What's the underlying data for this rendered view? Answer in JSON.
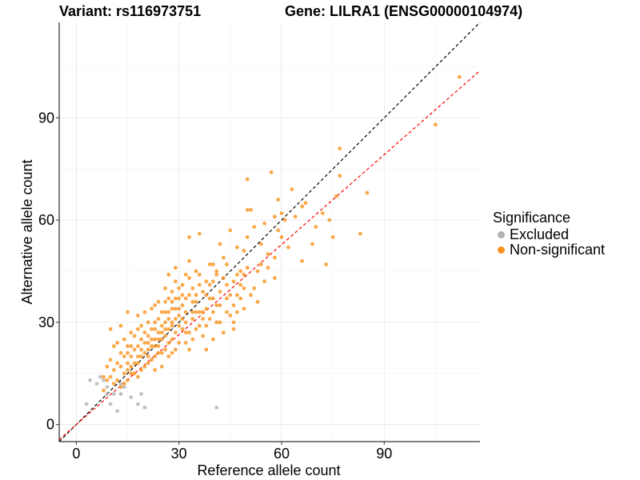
{
  "chart_data": {
    "type": "scatter",
    "title_left": "Variant: rs116973751",
    "title_right": "Gene: LILRA1 (ENSG00000104974)",
    "xlabel": "Reference allele count",
    "ylabel": "Alternative allele count",
    "xlim": [
      -5,
      118
    ],
    "ylim": [
      -5,
      118
    ],
    "xticks": [
      0,
      30,
      60,
      90
    ],
    "yticks": [
      0,
      30,
      60,
      90
    ],
    "grid": true,
    "legend": {
      "title": "Significance",
      "placement": "right",
      "entries": [
        {
          "label": "Excluded",
          "color": "#b3b3b3"
        },
        {
          "label": "Non-significant",
          "color": "#f7931e"
        }
      ]
    },
    "lines": [
      {
        "kind": "identity",
        "slope": 1.0,
        "intercept": 0,
        "color": "#000000",
        "dash": true
      },
      {
        "kind": "fit",
        "slope": 0.88,
        "intercept": 0,
        "color": "#ff0000",
        "dash": true
      }
    ],
    "series": [
      {
        "name": "Excluded",
        "color": "#b3b3b3",
        "points": [
          [
            3,
            6
          ],
          [
            4,
            13
          ],
          [
            6,
            12
          ],
          [
            7,
            14
          ],
          [
            8,
            13
          ],
          [
            9,
            11
          ],
          [
            9,
            9
          ],
          [
            10,
            6
          ],
          [
            11,
            9
          ],
          [
            13,
            9
          ],
          [
            13,
            12
          ],
          [
            16,
            8
          ],
          [
            18,
            6
          ],
          [
            19,
            9
          ],
          [
            20,
            5
          ],
          [
            41,
            5
          ],
          [
            12,
            4
          ],
          [
            14,
            11
          ]
        ]
      },
      {
        "name": "Non-significant",
        "color": "#f7931e",
        "points": [
          [
            112,
            102
          ],
          [
            105,
            88
          ],
          [
            77,
            81
          ],
          [
            72,
            62
          ],
          [
            73,
            47
          ],
          [
            76,
            67
          ],
          [
            77,
            73
          ],
          [
            85,
            68
          ],
          [
            83,
            56
          ],
          [
            74,
            60
          ],
          [
            75,
            55
          ],
          [
            70,
            58
          ],
          [
            66,
            64
          ],
          [
            67,
            65
          ],
          [
            66,
            48
          ],
          [
            69,
            53
          ],
          [
            63,
            69
          ],
          [
            64,
            61
          ],
          [
            60,
            62
          ],
          [
            61,
            60
          ],
          [
            62,
            52
          ],
          [
            60,
            55
          ],
          [
            58,
            61
          ],
          [
            58,
            43
          ],
          [
            57,
            74
          ],
          [
            59,
            66
          ],
          [
            59,
            57
          ],
          [
            58,
            49
          ],
          [
            55,
            59
          ],
          [
            56,
            50
          ],
          [
            56,
            46
          ],
          [
            54,
            53
          ],
          [
            53,
            36
          ],
          [
            53,
            45
          ],
          [
            52,
            58
          ],
          [
            51,
            63
          ],
          [
            50,
            63
          ],
          [
            50,
            72
          ],
          [
            50,
            55
          ],
          [
            49,
            51
          ],
          [
            49,
            44
          ],
          [
            49,
            40
          ],
          [
            48,
            37
          ],
          [
            47,
            44
          ],
          [
            47,
            52
          ],
          [
            46,
            30
          ],
          [
            46,
            35
          ],
          [
            45,
            38
          ],
          [
            45,
            57
          ],
          [
            44,
            47
          ],
          [
            44,
            41
          ],
          [
            43,
            49
          ],
          [
            42,
            53
          ],
          [
            42,
            39
          ],
          [
            41,
            44
          ],
          [
            41,
            35
          ],
          [
            40,
            42
          ],
          [
            40,
            33
          ],
          [
            40,
            25
          ],
          [
            39,
            37
          ],
          [
            39,
            47
          ],
          [
            38,
            42
          ],
          [
            38,
            34
          ],
          [
            38,
            29
          ],
          [
            37,
            39
          ],
          [
            37,
            31
          ],
          [
            36,
            56
          ],
          [
            36,
            44
          ],
          [
            36,
            41
          ],
          [
            35,
            38
          ],
          [
            35,
            33
          ],
          [
            35,
            28
          ],
          [
            34,
            40
          ],
          [
            34,
            36
          ],
          [
            34,
            31
          ],
          [
            33,
            55
          ],
          [
            33,
            48
          ],
          [
            33,
            43
          ],
          [
            33,
            27
          ],
          [
            32,
            44
          ],
          [
            32,
            37
          ],
          [
            32,
            33
          ],
          [
            32,
            30
          ],
          [
            31,
            41
          ],
          [
            31,
            38
          ],
          [
            31,
            35
          ],
          [
            30,
            40
          ],
          [
            30,
            34
          ],
          [
            30,
            29
          ],
          [
            30,
            24
          ],
          [
            29,
            46
          ],
          [
            29,
            42
          ],
          [
            29,
            37
          ],
          [
            29,
            31
          ],
          [
            29,
            27
          ],
          [
            28,
            39
          ],
          [
            28,
            34
          ],
          [
            28,
            29
          ],
          [
            28,
            25
          ],
          [
            28,
            21
          ],
          [
            27,
            44
          ],
          [
            27,
            37
          ],
          [
            27,
            33
          ],
          [
            27,
            28
          ],
          [
            27,
            24
          ],
          [
            26,
            40
          ],
          [
            26,
            36
          ],
          [
            26,
            30
          ],
          [
            26,
            26
          ],
          [
            26,
            22
          ],
          [
            25,
            33
          ],
          [
            25,
            29
          ],
          [
            25,
            21
          ],
          [
            25,
            17
          ],
          [
            24,
            36
          ],
          [
            24,
            31
          ],
          [
            24,
            27
          ],
          [
            24,
            23
          ],
          [
            23,
            35
          ],
          [
            23,
            30
          ],
          [
            23,
            25
          ],
          [
            23,
            20
          ],
          [
            23,
            16
          ],
          [
            22,
            34
          ],
          [
            22,
            28
          ],
          [
            22,
            23
          ],
          [
            21,
            30
          ],
          [
            21,
            26
          ],
          [
            21,
            22
          ],
          [
            21,
            18
          ],
          [
            20,
            33
          ],
          [
            20,
            27
          ],
          [
            20,
            21
          ],
          [
            19,
            25
          ],
          [
            19,
            20
          ],
          [
            19,
            16
          ],
          [
            18,
            32
          ],
          [
            18,
            28
          ],
          [
            18,
            23
          ],
          [
            18,
            18
          ],
          [
            17,
            26
          ],
          [
            17,
            22
          ],
          [
            16,
            27
          ],
          [
            16,
            20
          ],
          [
            16,
            15
          ],
          [
            15,
            33
          ],
          [
            15,
            23
          ],
          [
            15,
            18
          ],
          [
            15,
            13
          ],
          [
            14,
            25
          ],
          [
            14,
            20
          ],
          [
            14,
            15
          ],
          [
            13,
            29
          ],
          [
            13,
            21
          ],
          [
            13,
            17
          ],
          [
            13,
            11
          ],
          [
            12,
            24
          ],
          [
            12,
            18
          ],
          [
            12,
            13
          ],
          [
            11,
            23
          ],
          [
            11,
            16
          ],
          [
            11,
            12
          ],
          [
            10,
            28
          ],
          [
            10,
            19
          ],
          [
            10,
            14
          ],
          [
            9,
            17
          ],
          [
            9,
            13
          ],
          [
            8,
            14
          ],
          [
            8,
            10
          ],
          [
            47,
            33
          ],
          [
            46,
            28
          ],
          [
            48,
            45
          ],
          [
            44,
            33
          ],
          [
            43,
            27
          ],
          [
            42,
            30
          ],
          [
            41,
            45
          ],
          [
            40,
            37
          ],
          [
            39,
            31
          ],
          [
            38,
            22
          ],
          [
            37,
            26
          ],
          [
            36,
            33
          ],
          [
            35,
            45
          ],
          [
            34,
            25
          ],
          [
            33,
            22
          ],
          [
            32,
            24
          ],
          [
            31,
            28
          ],
          [
            30,
            32
          ],
          [
            29,
            22
          ],
          [
            28,
            30
          ],
          [
            27,
            20
          ],
          [
            26,
            33
          ],
          [
            25,
            25
          ],
          [
            24,
            21
          ],
          [
            23,
            28
          ],
          [
            22,
            19
          ],
          [
            21,
            24
          ],
          [
            20,
            17
          ],
          [
            19,
            29
          ],
          [
            18,
            14
          ],
          [
            17,
            18
          ],
          [
            16,
            23
          ],
          [
            15,
            16
          ],
          [
            14,
            12
          ],
          [
            55,
            42
          ],
          [
            54,
            47
          ],
          [
            52,
            40
          ],
          [
            51,
            38
          ],
          [
            50,
            46
          ],
          [
            49,
            34
          ],
          [
            48,
            41
          ],
          [
            47,
            38
          ],
          [
            46,
            42
          ],
          [
            45,
            32
          ],
          [
            44,
            37
          ],
          [
            43,
            43
          ],
          [
            42,
            35
          ],
          [
            41,
            30
          ],
          [
            40,
            47
          ],
          [
            39,
            41
          ],
          [
            38,
            38
          ],
          [
            37,
            33
          ],
          [
            36,
            29
          ],
          [
            35,
            36
          ],
          [
            34,
            33
          ],
          [
            33,
            38
          ],
          [
            32,
            27
          ],
          [
            31,
            31
          ],
          [
            30,
            37
          ],
          [
            29,
            34
          ],
          [
            28,
            36
          ],
          [
            27,
            31
          ],
          [
            26,
            28
          ],
          [
            25,
            27
          ],
          [
            24,
            25
          ],
          [
            23,
            23
          ],
          [
            22,
            25
          ],
          [
            21,
            20
          ],
          [
            20,
            24
          ],
          [
            19,
            22
          ],
          [
            18,
            20
          ],
          [
            17,
            15
          ],
          [
            16,
            17
          ],
          [
            15,
            21
          ]
        ]
      }
    ]
  }
}
